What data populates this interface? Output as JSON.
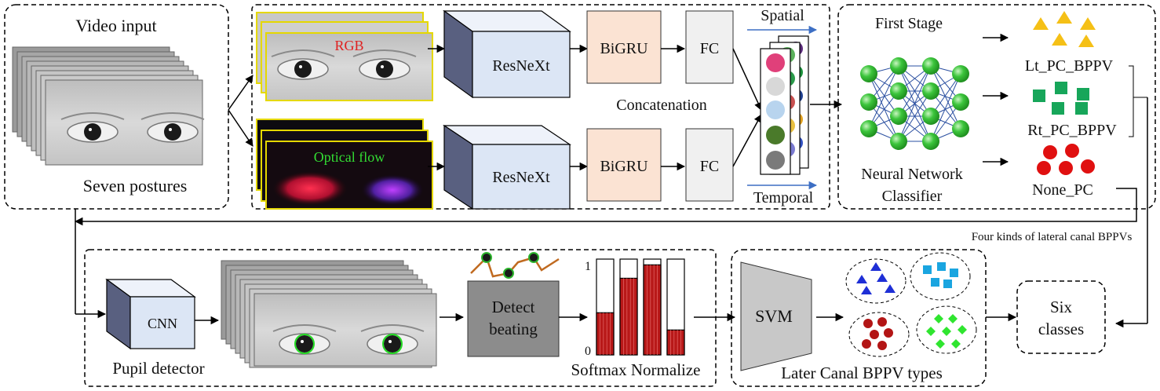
{
  "video_panel": {
    "title": "Video input",
    "caption": "Seven postures"
  },
  "stream_labels": {
    "rgb": "RGB",
    "optical_flow": "Optical flow"
  },
  "network": {
    "resnext_top": "ResNeXt",
    "resnext_bottom": "ResNeXt",
    "bigru_top": "BiGRU",
    "bigru_bottom": "BiGRU",
    "fc_top": "FC",
    "fc_bottom": "FC",
    "concat_label": "Concatenation",
    "spatial_label": "Spatial",
    "temporal_label": "Temporal"
  },
  "first_stage": {
    "title": "First Stage",
    "classifier_line1": "Neural Network",
    "classifier_line2": "Classifier",
    "output_lt": "Lt_PC_BPPV",
    "output_rt": "Rt_PC_BPPV",
    "output_none": "None_PC"
  },
  "pupil": {
    "cnn_label": "CNN",
    "detector_caption": "Pupil detector",
    "detect_line1": "Detect",
    "detect_line2": "beating",
    "softmax_caption": "Softmax Normalize",
    "axis_top": "1",
    "axis_bottom": "0",
    "bar_values": [
      0.44,
      0.8,
      0.94,
      0.26
    ]
  },
  "svm_panel": {
    "svm_label": "SVM",
    "caption": "Later Canal BPPV types",
    "group_note": "Four kinds of lateral canal BPPVs"
  },
  "result": {
    "line1": "Six",
    "line2": "classes"
  },
  "colors": {
    "cube_front": "#dce6f5",
    "bigru_fill": "#fbe3d3",
    "fc_fill": "#f0f0f0",
    "lt_triangles": "#f5c016",
    "rt_squares": "#17a65a",
    "none_circles": "#e01010",
    "blue_triangles": "#1e2fd6",
    "cyan_squares": "#1aa5e0",
    "red_dots": "#b31515",
    "green_diamonds": "#2fe52f",
    "neural_node": "#2db52d",
    "bar_red": "#b81818",
    "spatial_arrow": "#3d6fc4",
    "rgb_text": "#e02020",
    "flow_text": "#33dd33"
  },
  "icons": {
    "eye_frames": "eye-frames-icon",
    "nodes": "neural-network-icon",
    "signal": "beating-signal-icon"
  }
}
